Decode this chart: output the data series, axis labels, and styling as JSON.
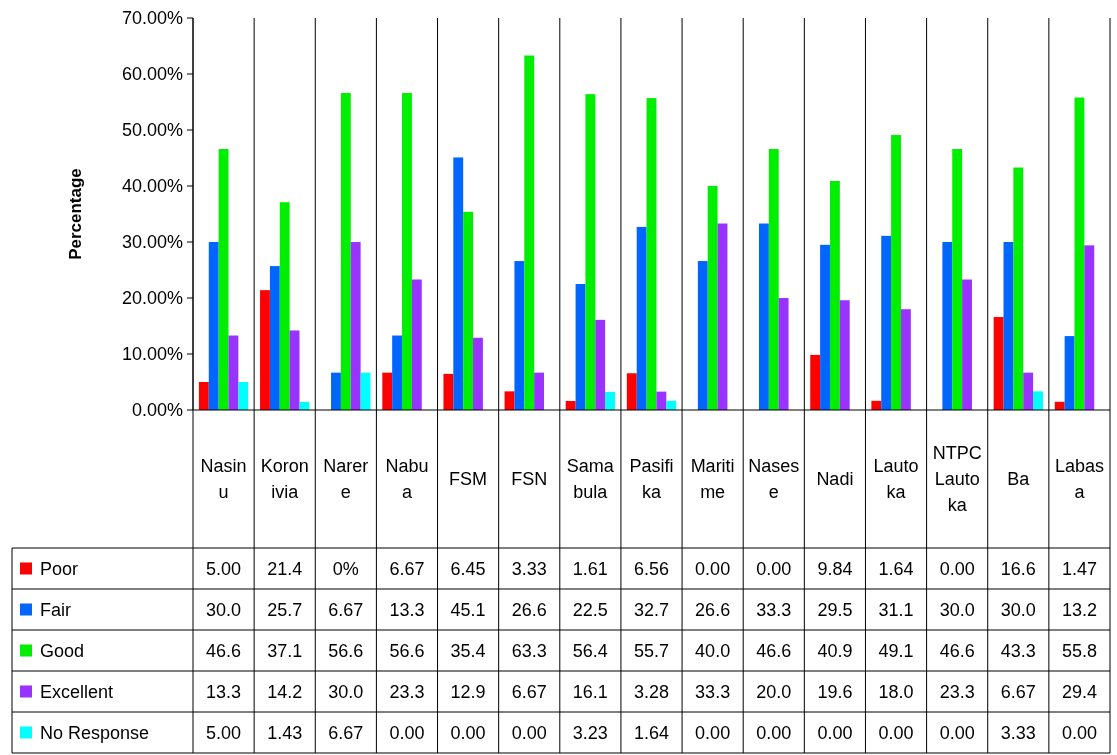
{
  "chart_data": {
    "type": "bar",
    "ylabel": "Percentage",
    "categories": [
      "Nasinu",
      "Koronivia",
      "Narere",
      "Nabua",
      "FSM",
      "FSN",
      "Samabula",
      "Pasifika",
      "Maritime",
      "Nasese",
      "Nadi",
      "Lautoka",
      "NTPC Lautoka",
      "Ba",
      "Labasa"
    ],
    "series": [
      {
        "name": "Poor",
        "color": "#ff0000",
        "values": [
          5.0,
          21.4,
          0,
          6.67,
          6.45,
          3.33,
          1.61,
          6.56,
          0.0,
          0.0,
          9.84,
          1.64,
          0.0,
          16.6,
          1.47
        ],
        "value_labels": [
          "5.00",
          "21.4",
          "0%",
          "6.67",
          "6.45",
          "3.33",
          "1.61",
          "6.56",
          "0.00",
          "0.00",
          "9.84",
          "1.64",
          "0.00",
          "16.6",
          "1.47"
        ]
      },
      {
        "name": "Fair",
        "color": "#0066ff",
        "values": [
          30.0,
          25.7,
          6.67,
          13.3,
          45.1,
          26.6,
          22.5,
          32.7,
          26.6,
          33.3,
          29.5,
          31.1,
          30.0,
          30.0,
          13.2
        ],
        "value_labels": [
          "30.0",
          "25.7",
          "6.67",
          "13.3",
          "45.1",
          "26.6",
          "22.5",
          "32.7",
          "26.6",
          "33.3",
          "29.5",
          "31.1",
          "30.0",
          "30.0",
          "13.2"
        ]
      },
      {
        "name": "Good",
        "color": "#00ee00",
        "values": [
          46.6,
          37.1,
          56.6,
          56.6,
          35.4,
          63.3,
          56.4,
          55.7,
          40.0,
          46.6,
          40.9,
          49.1,
          46.6,
          43.3,
          55.8
        ],
        "value_labels": [
          "46.6",
          "37.1",
          "56.6",
          "56.6",
          "35.4",
          "63.3",
          "56.4",
          "55.7",
          "40.0",
          "46.6",
          "40.9",
          "49.1",
          "46.6",
          "43.3",
          "55.8"
        ]
      },
      {
        "name": "Excellent",
        "color": "#9933ff",
        "values": [
          13.3,
          14.2,
          30.0,
          23.3,
          12.9,
          6.67,
          16.1,
          3.28,
          33.3,
          20.0,
          19.6,
          18.0,
          23.3,
          6.67,
          29.4
        ],
        "value_labels": [
          "13.3",
          "14.2",
          "30.0",
          "23.3",
          "12.9",
          "6.67",
          "16.1",
          "3.28",
          "33.3",
          "20.0",
          "19.6",
          "18.0",
          "23.3",
          "6.67",
          "29.4"
        ]
      },
      {
        "name": "No Response",
        "color": "#00ffff",
        "values": [
          5.0,
          1.43,
          6.67,
          0.0,
          0.0,
          0.0,
          3.23,
          1.64,
          0.0,
          0.0,
          0.0,
          0.0,
          0.0,
          3.33,
          0.0
        ],
        "value_labels": [
          "5.00",
          "1.43",
          "6.67",
          "0.00",
          "0.00",
          "0.00",
          "3.23",
          "1.64",
          "0.00",
          "0.00",
          "0.00",
          "0.00",
          "0.00",
          "3.33",
          "0.00"
        ]
      }
    ],
    "ylim": [
      0,
      70
    ],
    "yticks": [
      {
        "value": 0,
        "label": "0.00%"
      },
      {
        "value": 10,
        "label": "10.00%"
      },
      {
        "value": 20,
        "label": "20.00%"
      },
      {
        "value": 30,
        "label": "30.00%"
      },
      {
        "value": 40,
        "label": "40.00%"
      },
      {
        "value": 50,
        "label": "50.00%"
      },
      {
        "value": 60,
        "label": "60.00%"
      },
      {
        "value": 70,
        "label": "70.00%"
      }
    ],
    "grid": false,
    "legend": "bottom"
  }
}
